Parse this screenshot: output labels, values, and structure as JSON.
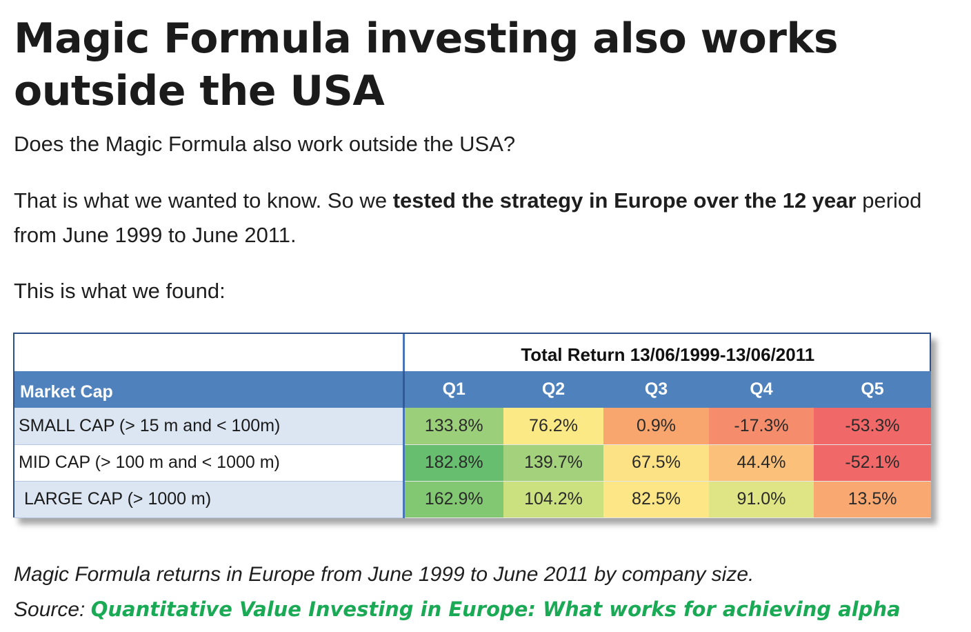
{
  "heading": "Magic Formula investing also works outside the USA",
  "paragraphs": {
    "p1": "Does the Magic Formula also work outside the USA?",
    "p2_plain": "That is what we wanted to know. So we ",
    "p2_bold": "tested the strategy in Europe over the 12 year",
    "p2_rest": " period from June 1999 to June 2011.",
    "p3": "This is what we found:"
  },
  "table": {
    "group_header": "Total Return 13/06/1999-13/06/2011",
    "row_header": "Market Cap",
    "columns": [
      "Q1",
      "Q2",
      "Q3",
      "Q4",
      "Q5"
    ],
    "rows": [
      {
        "label": "SMALL CAP  (> 15 m and < 100m)",
        "values": [
          "133.8%",
          "76.2%",
          "0.9%",
          "-17.3%",
          "-53.3%"
        ]
      },
      {
        "label": "MID CAP  (> 100 m and < 1000 m)",
        "values": [
          "182.8%",
          "139.7%",
          "67.5%",
          "44.4%",
          "-52.1%"
        ]
      },
      {
        "label": "LARGE CAP  (> 1000 m)",
        "values": [
          "162.9%",
          "104.2%",
          "82.5%",
          "91.0%",
          "13.5%"
        ]
      }
    ],
    "cell_colors": [
      [
        "#9bcf7a",
        "#fbe985",
        "#f8a66e",
        "#f58d6c",
        "#f16868"
      ],
      [
        "#66be6e",
        "#a4d17c",
        "#fde185",
        "#fbc07a",
        "#f16868"
      ],
      [
        "#82c772",
        "#cbe07f",
        "#fde686",
        "#dfe485",
        "#f8a870"
      ]
    ]
  },
  "caption": {
    "line1": "Magic Formula returns in Europe from June 1999 to June 2011 by company size.",
    "source_prefix": "Source: ",
    "source_link": "Quantitative Value Investing in Europe: What works for achieving alpha"
  },
  "colors": {
    "header_blue": "#4f81bd",
    "link_green": "#1aaa55"
  }
}
